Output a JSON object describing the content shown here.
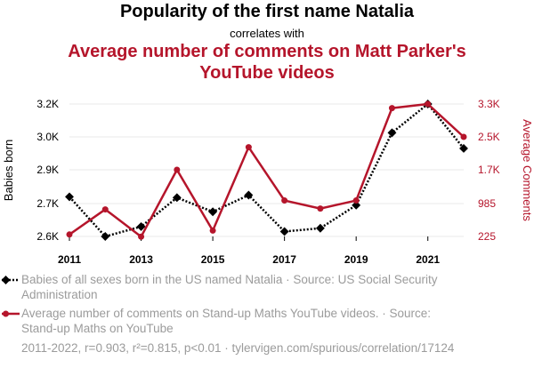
{
  "header": {
    "title": "Popularity of the first name Natalia",
    "subtitle": "correlates with",
    "title2": "Average number of comments on Matt Parker's YouTube videos"
  },
  "chart_data": {
    "type": "line",
    "x": [
      2011,
      2012,
      2013,
      2014,
      2015,
      2016,
      2017,
      2018,
      2019,
      2020,
      2021,
      2022
    ],
    "x_ticks": [
      "2011",
      "2013",
      "2015",
      "2017",
      "2019",
      "2021"
    ],
    "y_left": {
      "label": "Babies born",
      "ticks": [
        "2.6K",
        "2.7K",
        "2.9K",
        "3.0K",
        "3.2K"
      ],
      "tick_values": [
        2600,
        2700,
        2900,
        3000,
        3200
      ]
    },
    "y_right": {
      "label": "Average Comments",
      "ticks": [
        "225",
        "985",
        "1.7K",
        "2.5K",
        "3.3K"
      ],
      "tick_values": [
        225,
        985,
        1700,
        2500,
        3300
      ]
    },
    "series": [
      {
        "name": "Babies of all sexes born in the US named Natalia",
        "axis": "left",
        "color": "#000000",
        "style": "dotted",
        "marker": "diamond",
        "values": [
          2740,
          2600,
          2630,
          2735,
          2675,
          2750,
          2615,
          2625,
          2695,
          3025,
          3200,
          2965
        ]
      },
      {
        "name": "Average number of comments on Stand-up Maths YouTube videos",
        "axis": "right",
        "color": "#b5152b",
        "style": "solid",
        "marker": "circle",
        "values": [
          270,
          850,
          220,
          1700,
          360,
          2250,
          1050,
          870,
          1050,
          3200,
          3300,
          2500
        ]
      }
    ]
  },
  "legend": {
    "line1": "Babies of all sexes born in the US named Natalia · Source: US Social Security Administration",
    "line2": "Average number of comments on Stand-up Maths YouTube videos. · Source: Stand-up Maths on YouTube"
  },
  "footer": "2011-2022, r=0.903, r²=0.815, p<0.01 · tylervigen.com/spurious/correlation/17124",
  "colors": {
    "accent": "#b5152b",
    "black": "#000000",
    "muted": "#9b9b9b",
    "grid": "#e8e8e8"
  }
}
